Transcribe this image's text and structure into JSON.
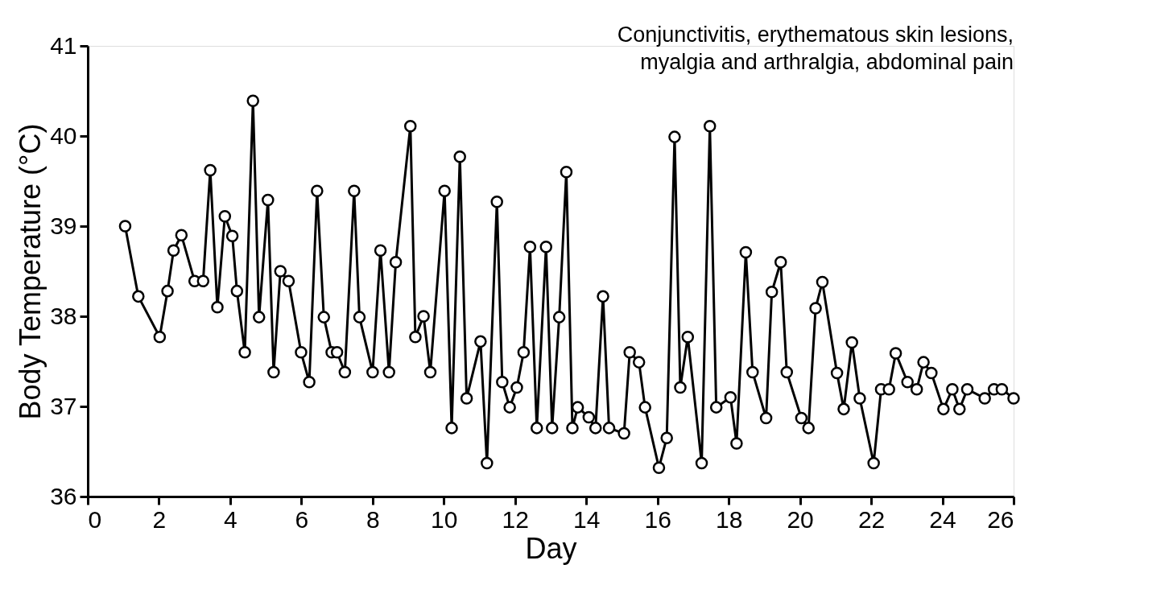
{
  "chart_data": {
    "type": "line",
    "annotations": [
      "Conjunctivitis, erythematous skin lesions,\nmyalgia and arthralgia, abdominal pain"
    ],
    "xlabel": "Day",
    "ylabel": "Body Temperature (°C)",
    "xlim": [
      0,
      26
    ],
    "xticks": [
      0,
      2,
      4,
      6,
      8,
      10,
      12,
      14,
      16,
      18,
      20,
      22,
      24,
      26
    ],
    "ylim": [
      36,
      41
    ],
    "yticks": [
      36,
      37,
      38,
      39,
      40,
      41
    ],
    "grid": false,
    "marker": "circle",
    "line_style": "solid",
    "series": [
      {
        "color": "#000000",
        "x": [
          1.05,
          1.42,
          2.02,
          2.24,
          2.41,
          2.63,
          3.0,
          3.24,
          3.44,
          3.64,
          3.85,
          4.06,
          4.19,
          4.41,
          4.64,
          4.81,
          5.06,
          5.22,
          5.41,
          5.64,
          5.99,
          6.22,
          6.44,
          6.63,
          6.85,
          7.0,
          7.22,
          7.48,
          7.63,
          8.0,
          8.22,
          8.46,
          8.65,
          9.06,
          9.2,
          9.43,
          9.62,
          10.02,
          10.22,
          10.45,
          10.64,
          11.03,
          11.21,
          11.49,
          11.64,
          11.85,
          12.05,
          12.24,
          12.42,
          12.61,
          12.87,
          13.04,
          13.24,
          13.44,
          13.61,
          13.76,
          14.07,
          14.26,
          14.47,
          14.64,
          15.06,
          15.22,
          15.48,
          15.65,
          16.04,
          16.26,
          16.48,
          16.64,
          16.85,
          17.24,
          17.47,
          17.65,
          18.05,
          18.22,
          18.48,
          18.67,
          19.05,
          19.21,
          19.46,
          19.63,
          20.04,
          20.24,
          20.44,
          20.63,
          21.04,
          21.23,
          21.46,
          21.68,
          22.07,
          22.28,
          22.5,
          22.69,
          23.02,
          23.28,
          23.47,
          23.69,
          24.03,
          24.28,
          24.48,
          24.7,
          25.19,
          25.45,
          25.67,
          26.0
        ],
        "values": [
          39.0,
          38.22,
          37.77,
          38.28,
          38.73,
          38.9,
          38.39,
          38.39,
          39.62,
          38.1,
          39.11,
          38.89,
          38.28,
          37.6,
          40.39,
          37.99,
          39.29,
          37.38,
          38.5,
          38.39,
          37.6,
          37.27,
          39.39,
          37.99,
          37.6,
          37.6,
          37.38,
          39.39,
          37.99,
          37.38,
          38.73,
          37.38,
          38.6,
          40.11,
          37.77,
          38.0,
          37.38,
          39.39,
          36.76,
          39.77,
          37.09,
          37.72,
          36.37,
          39.27,
          37.27,
          36.99,
          37.21,
          37.6,
          38.77,
          36.76,
          38.77,
          36.76,
          37.99,
          39.6,
          36.76,
          36.99,
          36.88,
          36.76,
          38.22,
          36.76,
          36.7,
          37.6,
          37.49,
          36.99,
          36.32,
          36.65,
          39.99,
          37.21,
          37.77,
          36.37,
          40.11,
          36.99,
          37.1,
          36.59,
          38.71,
          37.38,
          36.87,
          38.27,
          38.6,
          37.38,
          36.87,
          36.76,
          38.09,
          38.38,
          37.37,
          36.97,
          37.71,
          37.09,
          36.37,
          37.19,
          37.19,
          37.59,
          37.27,
          37.19,
          37.49,
          37.37,
          36.97,
          37.19,
          36.97,
          37.19,
          37.09,
          37.19,
          37.19,
          37.09
        ]
      }
    ]
  }
}
